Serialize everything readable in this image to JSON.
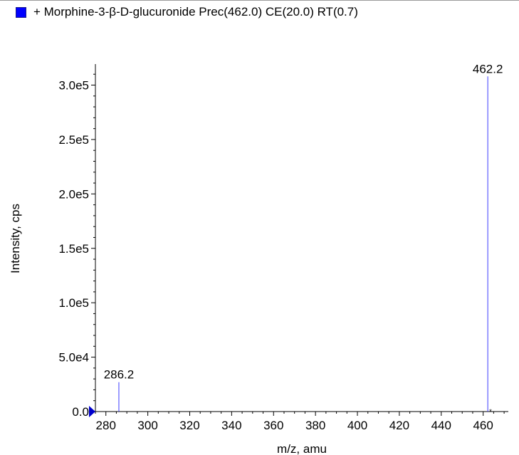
{
  "legend": {
    "label": "+ Morphine-3-β-D-glucuronide Prec(462.0) CE(20.0) RT(0.7)",
    "swatch_color": "#0000ff"
  },
  "colors": {
    "series": "#3b3bff",
    "axis": "#000000",
    "marker": "#0000cc",
    "frame": "#9a9a9a"
  },
  "chart_data": {
    "type": "bar",
    "title": "",
    "xlabel": "m/z, amu",
    "ylabel": "Intensity, cps",
    "xlim": [
      275,
      472
    ],
    "ylim": [
      0,
      318000
    ],
    "x_ticks": [
      280,
      300,
      320,
      340,
      360,
      380,
      400,
      420,
      440,
      460
    ],
    "x_tick_labels": [
      "280",
      "300",
      "320",
      "340",
      "360",
      "380",
      "400",
      "420",
      "440",
      "460"
    ],
    "x_minor_step": 5,
    "y_ticks": [
      0,
      50000,
      100000,
      150000,
      200000,
      250000,
      300000
    ],
    "y_tick_labels": [
      "0.0",
      "5.0e4",
      "1.0e5",
      "1.5e5",
      "2.0e5",
      "2.5e5",
      "3.0e5"
    ],
    "y_minor_step": 10000,
    "grid": false,
    "legend_position": "top-left",
    "series": [
      {
        "name": "+ Morphine-3-β-D-glucuronide Prec(462.0) CE(20.0) RT(0.7)",
        "peaks": [
          {
            "x": 286.2,
            "y": 27000,
            "label": "286.2"
          },
          {
            "x": 462.2,
            "y": 308000,
            "label": "462.2"
          }
        ]
      }
    ],
    "annotations": [
      {
        "x": 463.5,
        "y": 500,
        "text": "*"
      }
    ]
  }
}
